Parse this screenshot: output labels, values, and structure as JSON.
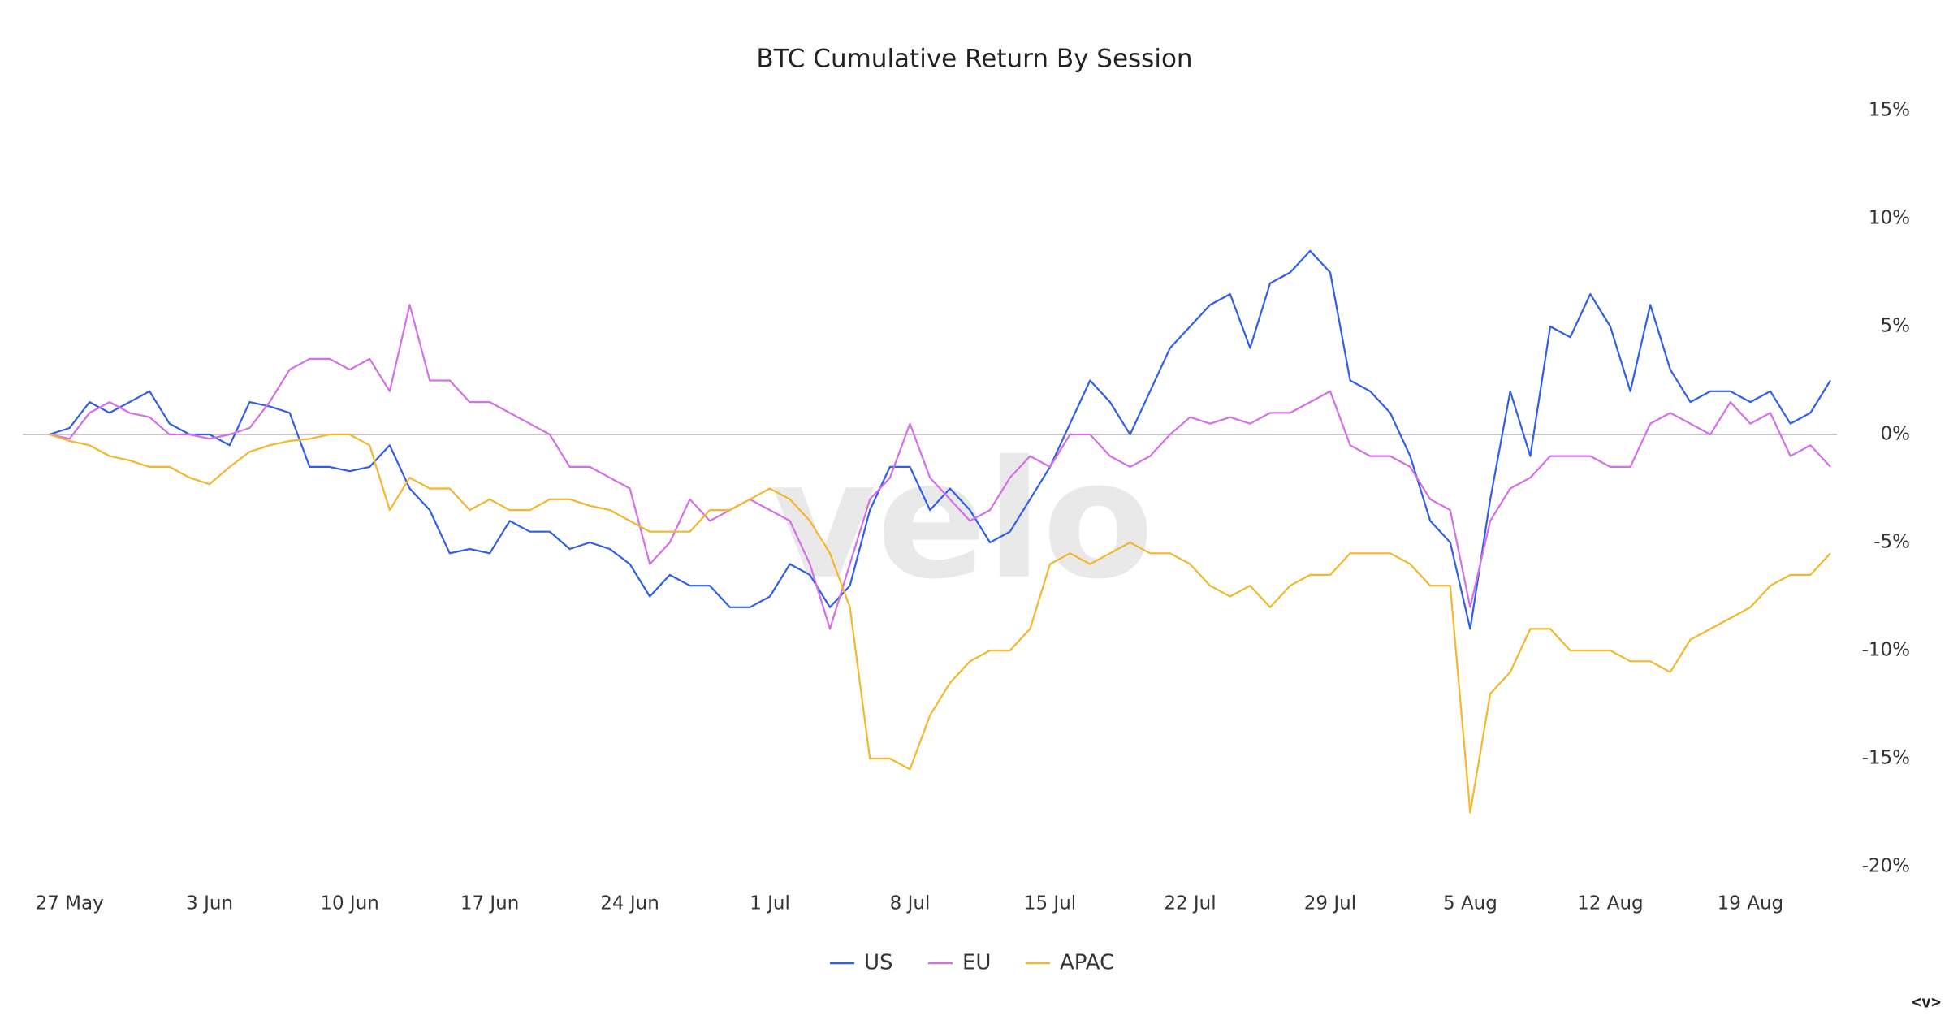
{
  "chart_data": {
    "type": "line",
    "title": "BTC Cumulative Return By Session",
    "watermark": "velo",
    "corner_mark": "<v>",
    "categories": [
      null,
      "27 May",
      null,
      null,
      null,
      null,
      null,
      null,
      "3 Jun",
      null,
      null,
      null,
      null,
      null,
      null,
      "10 Jun",
      null,
      null,
      null,
      null,
      null,
      null,
      "17 Jun",
      null,
      null,
      null,
      null,
      null,
      null,
      "24 Jun",
      null,
      null,
      null,
      null,
      null,
      null,
      "1 Jul",
      null,
      null,
      null,
      null,
      null,
      null,
      "8 Jul",
      null,
      null,
      null,
      null,
      null,
      null,
      "15 Jul",
      null,
      null,
      null,
      null,
      null,
      null,
      "22 Jul",
      null,
      null,
      null,
      null,
      null,
      null,
      "29 Jul",
      null,
      null,
      null,
      null,
      null,
      null,
      "5 Aug",
      null,
      null,
      null,
      null,
      null,
      null,
      "12 Aug",
      null,
      null,
      null,
      null,
      null,
      null,
      "19 Aug",
      null,
      null,
      null,
      null
    ],
    "series": [
      {
        "name": "US",
        "color": "#2f5fe8",
        "values": [
          0,
          0.3,
          1.5,
          1.0,
          1.5,
          2.0,
          0.5,
          0,
          0,
          -0.5,
          1.5,
          1.3,
          1.0,
          -1.5,
          -1.5,
          -1.7,
          -1.5,
          -0.5,
          -2.5,
          -3.5,
          -5.5,
          -5.3,
          -5.5,
          -4.0,
          -4.5,
          -4.5,
          -5.3,
          -5.0,
          -5.3,
          -6.0,
          -7.5,
          -6.5,
          -7.0,
          -7.0,
          -8.0,
          -8.0,
          -7.5,
          -6.0,
          -6.5,
          -8.0,
          -7.0,
          -3.5,
          -1.5,
          -1.5,
          -3.5,
          -2.5,
          -3.5,
          -5.0,
          -4.5,
          -3.0,
          -1.5,
          0.5,
          2.5,
          1.5,
          0,
          2.0,
          4.0,
          5.0,
          6.0,
          6.5,
          4.0,
          7.0,
          7.5,
          8.5,
          7.5,
          2.5,
          2.0,
          1.0,
          -1.0,
          -4.0,
          -5.0,
          -9.0,
          -3.0,
          2.0,
          -1.0,
          5.0,
          4.5,
          6.5,
          5.0,
          2.0,
          6.0,
          3.0,
          1.5,
          2.0,
          2.0,
          1.5,
          2.0,
          0.5,
          1.0,
          2.5
        ]
      },
      {
        "name": "EU",
        "color": "#d56ee9",
        "values": [
          0,
          -0.2,
          1.0,
          1.5,
          1.0,
          0.8,
          0,
          0,
          -0.2,
          0,
          0.3,
          1.5,
          3.0,
          3.5,
          3.5,
          3.0,
          3.5,
          2.0,
          6.0,
          2.5,
          2.5,
          1.5,
          1.5,
          1.0,
          0.5,
          0,
          -1.5,
          -1.5,
          -2.0,
          -2.5,
          -6.0,
          -5.0,
          -3.0,
          -4.0,
          -3.5,
          -3.0,
          -3.5,
          -4.0,
          -6.0,
          -9.0,
          -6.0,
          -3.0,
          -2.0,
          0.5,
          -2.0,
          -3.0,
          -4.0,
          -3.5,
          -2.0,
          -1.0,
          -1.5,
          0,
          0,
          -1.0,
          -1.5,
          -1.0,
          0,
          0.8,
          0.5,
          0.8,
          0.5,
          1.0,
          1.0,
          1.5,
          2.0,
          -0.5,
          -1.0,
          -1.0,
          -1.5,
          -3.0,
          -3.5,
          -8.0,
          -4.0,
          -2.5,
          -2.0,
          -1.0,
          -1.0,
          -1.0,
          -1.5,
          -1.5,
          0.5,
          1.0,
          0.5,
          0,
          1.5,
          0.5,
          1.0,
          -1.0,
          -0.5,
          -1.5
        ]
      },
      {
        "name": "APAC",
        "color": "#f4b72c",
        "values": [
          0,
          -0.3,
          -0.5,
          -1.0,
          -1.2,
          -1.5,
          -1.5,
          -2.0,
          -2.3,
          -1.5,
          -0.8,
          -0.5,
          -0.3,
          -0.2,
          0,
          0,
          -0.5,
          -3.5,
          -2.0,
          -2.5,
          -2.5,
          -3.5,
          -3.0,
          -3.5,
          -3.5,
          -3.0,
          -3.0,
          -3.3,
          -3.5,
          -4.0,
          -4.5,
          -4.5,
          -4.5,
          -3.5,
          -3.5,
          -3.0,
          -2.5,
          -3.0,
          -4.0,
          -5.5,
          -8.0,
          -15.0,
          -15.0,
          -15.5,
          -13.0,
          -11.5,
          -10.5,
          -10.0,
          -10.0,
          -9.0,
          -6.0,
          -5.5,
          -6.0,
          -5.5,
          -5.0,
          -5.5,
          -5.5,
          -6.0,
          -7.0,
          -7.5,
          -7.0,
          -8.0,
          -7.0,
          -6.5,
          -6.5,
          -5.5,
          -5.5,
          -5.5,
          -6.0,
          -7.0,
          -7.0,
          -17.5,
          -12.0,
          -11.0,
          -9.0,
          -9.0,
          -10.0,
          -10.0,
          -10.0,
          -10.5,
          -10.5,
          -11.0,
          -9.5,
          -9.0,
          -8.5,
          -8.0,
          -7.0,
          -6.5,
          -6.5,
          -5.5
        ]
      }
    ],
    "ylim": [
      -20,
      15
    ],
    "yticks": [
      {
        "value": -20,
        "label": "-20%"
      },
      {
        "value": -15,
        "label": "-15%"
      },
      {
        "value": -10,
        "label": "-10%"
      },
      {
        "value": -5,
        "label": "-5%"
      },
      {
        "value": 0,
        "label": "0%"
      },
      {
        "value": 5,
        "label": "5%"
      },
      {
        "value": 10,
        "label": "10%"
      },
      {
        "value": 15,
        "label": "15%"
      }
    ],
    "zero_line": true,
    "grid": false,
    "legend": "bottom"
  }
}
